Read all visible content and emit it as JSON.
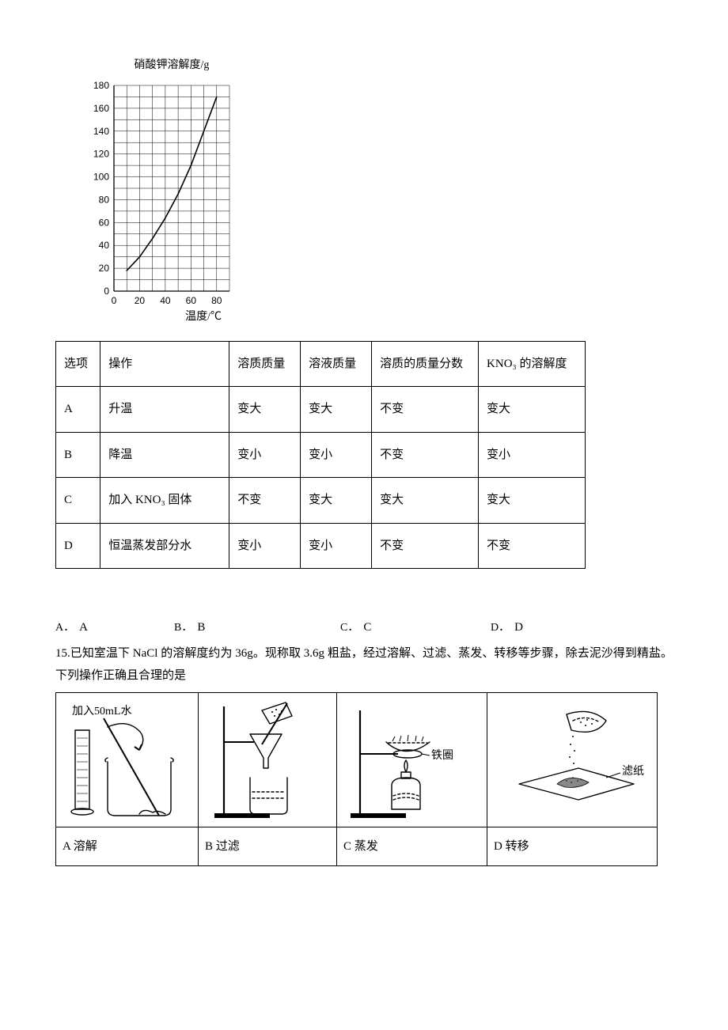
{
  "chart": {
    "type": "line",
    "title": "硝酸钾溶解度/g",
    "title_fontsize": 14,
    "xlabel": "温度/℃",
    "ylabel_position": "top",
    "xlim": [
      0,
      90
    ],
    "ylim": [
      0,
      180
    ],
    "xtick_labels": [
      0,
      20,
      40,
      60,
      80
    ],
    "xtick_positions": [
      0,
      20,
      40,
      60,
      80
    ],
    "ytick_labels": [
      0,
      20,
      40,
      60,
      80,
      100,
      120,
      140,
      160,
      180
    ],
    "ytick_positions": [
      0,
      20,
      40,
      60,
      80,
      100,
      120,
      140,
      160,
      180
    ],
    "grid_step_x": 10,
    "grid_step_y": 10,
    "grid_color": "#000000",
    "grid_stroke": 0.5,
    "axis_color": "#000000",
    "axis_stroke": 1,
    "curve_color": "#000000",
    "curve_stroke": 1.6,
    "curve_points": [
      [
        10,
        18
      ],
      [
        20,
        30
      ],
      [
        30,
        46
      ],
      [
        40,
        64
      ],
      [
        50,
        85
      ],
      [
        60,
        110
      ],
      [
        70,
        140
      ],
      [
        80,
        170
      ]
    ],
    "background_color": "#ffffff",
    "tick_fontsize": 12
  },
  "table1": {
    "headers": [
      "选项",
      "操作",
      "溶质质量",
      "溶液质量",
      "溶质的质量分数",
      "KNO₃ 的溶解度"
    ],
    "rows": [
      [
        "A",
        "升温",
        "变大",
        "变大",
        "不变",
        "变大"
      ],
      [
        "B",
        "降温",
        "变小",
        "变小",
        "不变",
        "变小"
      ],
      [
        "C",
        "加入 KNO₃ 固体",
        "不变",
        "变大",
        "变大",
        "变大"
      ],
      [
        "D",
        "恒温蒸发部分水",
        "变小",
        "变小",
        "不变",
        "不变"
      ]
    ]
  },
  "options": {
    "a_prefix": "A．",
    "a_text": "A",
    "b_prefix": "B．",
    "b_text": "B",
    "c_prefix": "C．",
    "c_text": "C",
    "d_prefix": "D．",
    "d_text": "D"
  },
  "q15": {
    "text": "15.已知室温下 NaCl 的溶解度约为 36g。现称取 3.6g 粗盐，经过溶解、过滤、蒸发、转移等步骤，除去泥沙得到精盐。下列操作正确且合理的是",
    "cells": {
      "a_img_label": "加入50mL水",
      "c_img_label": "铁圈",
      "d_img_label": "滤纸",
      "a": "A 溶解",
      "b": "B 过滤",
      "c": "C 蒸发",
      "d": "D 转移"
    }
  }
}
